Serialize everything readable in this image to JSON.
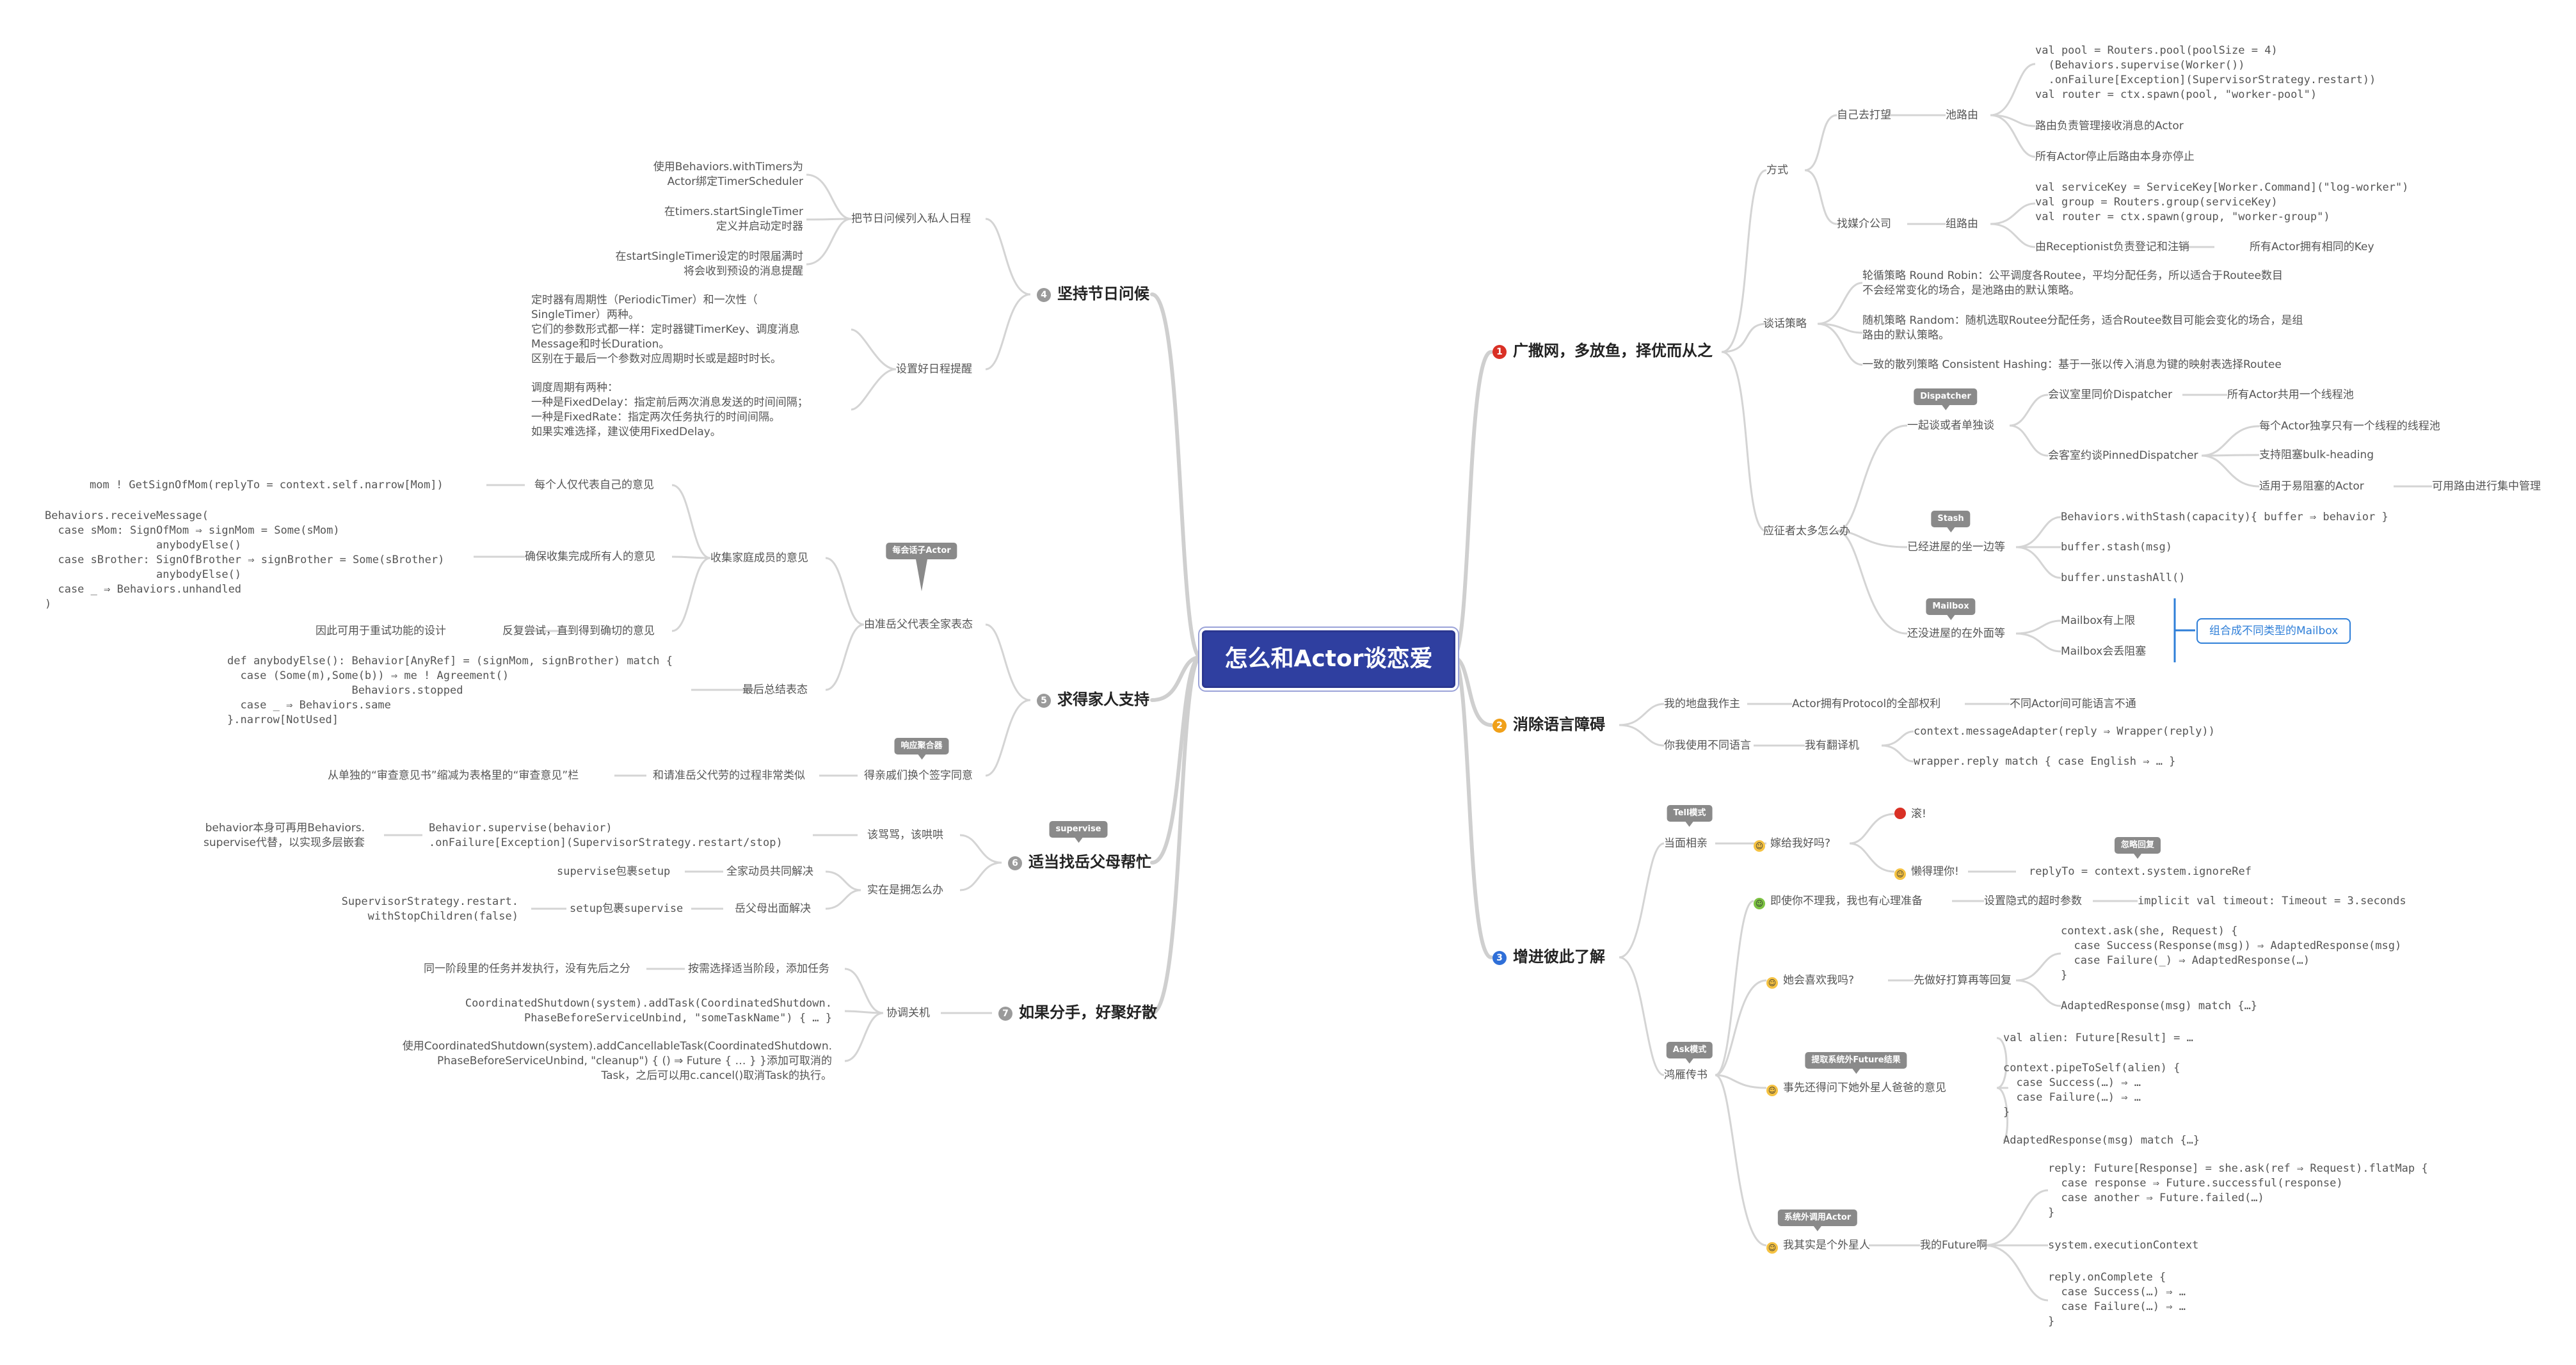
{
  "root": "怎么和Actor谈恋爱",
  "badges": {
    "dispatcher": "Dispatcher",
    "stash": "Stash",
    "mailbox": "Mailbox",
    "tell": "Tell模式",
    "ask": "Ask模式",
    "ignore": "忽略回复",
    "future_result": "提取系统外Future结果",
    "outside": "系统外调用Actor",
    "per_session": "每会话子Actor",
    "aggregate": "响应聚合器",
    "supervise": "supervise"
  },
  "r1": {
    "num": "1",
    "title": "广撒网，多放鱼，择优而从之",
    "fangshi": "方式",
    "ziji": "自己去打望",
    "chilu": "池路由",
    "pool_code": "val pool = Routers.pool(poolSize = 4)\n  (Behaviors.supervise(Worker())\n  .onFailure[Exception](SupervisorStrategy.restart))\nval router = ctx.spawn(pool, \"worker-pool\")",
    "pool_a": "路由负责管理接收消息的Actor",
    "pool_b": "所有Actor停止后路由本身亦停止",
    "jieshao": "找媒介公司",
    "zulu": "组路由",
    "group_code": "val serviceKey = ServiceKey[Worker.Command](\"log-worker\")\nval group = Routers.group(serviceKey)\nval router = ctx.spawn(group, \"worker-group\")",
    "group_a": "由Receptionist负责登记和注销",
    "group_b": "所有Actor拥有相同的Key",
    "tanhua": "谈话策略",
    "rr": "轮循策略 Round Robin：公平调度各Routee，平均分配任务，所以适合于Routee数目\n不会经常变化的场合，是池路由的默认策略。",
    "random": "随机策略 Random：随机选取Routee分配任务，适合Routee数目可能会变化的场合，是组\n路由的默认策略。",
    "hash": "一致的散列策略 Consistent Hashing：基于一张以传入消息为键的映射表选择Routee",
    "yingzheng": "应征者太多怎么办",
    "yiqi": "一起谈或者单独谈",
    "huiyi": "会议室里同价Dispatcher",
    "huiyi_a": "所有Actor共用一个线程池",
    "huike": "会客室约谈PinnedDispatcher",
    "huike_a": "每个Actor独享只有一个线程的线程池",
    "huike_b": "支持阻塞bulk-heading",
    "huike_c": "适用于易阻塞的Actor",
    "huike_c2": "可用路由进行集中管理",
    "yijing": "已经进屋的坐一边等",
    "stash_a": "Behaviors.withStash(capacity){ buffer ⇒ behavior }",
    "stash_b": "buffer.stash(msg)",
    "stash_c": "buffer.unstashAll()",
    "haimei": "还没进屋的在外面等",
    "mail_a": "Mailbox有上限",
    "mail_b": "Mailbox会丢阻塞",
    "mail_note": "组合成不同类型的Mailbox"
  },
  "r2": {
    "num": "2",
    "title": "消除语言障碍",
    "wode": "我的地盘我作主",
    "wode_a": "Actor拥有Protocol的全部权利",
    "wode_b": "不同Actor间可能语言不通",
    "nishi": "你我使用不同语言",
    "fanyi": "我有翻译机",
    "fanyi_a": "context.messageAdapter(reply ⇒ Wrapper(reply))",
    "fanyi_b": "wrapper.reply match { case English ⇒ … }"
  },
  "r3": {
    "num": "3",
    "title": "增进彼此了解",
    "dangmian": "当面相亲",
    "jia": "嫁给我好吗?",
    "gun": "滚!",
    "lanjie": "懒得理你!",
    "lanjie_a": "replyTo = context.system.ignoreRef",
    "yanyan": "鸿雁传书",
    "jishi": "即使你不理我，我也有心理准备",
    "jishi_a": "设置隐式的超时参数",
    "jishi_b": "implicit val timeout: Timeout = 3.seconds",
    "xihuan": "她会喜欢我吗?",
    "xian": "先做好打算再等回复",
    "xian_code": "context.ask(she, Request) {\n  case Success(Response(msg)) ⇒ AdaptedResponse(msg)\n  case Failure(_) ⇒ AdaptedResponse(…)\n}",
    "xian_b": "AdaptedResponse(msg) match {…}",
    "shixian": "事先还得问下她外星人爸爸的意见",
    "alien_a": "val alien: Future[Result] = …",
    "alien_code": "context.pipeToSelf(alien) {\n  case Success(…) ⇒ …\n  case Failure(…) ⇒ …\n}",
    "alien_b": "AdaptedResponse(msg) match {…}",
    "waixing": "我其实是个外星人",
    "future": "我的Future啊",
    "future_code": "reply: Future[Response] = she.ask(ref ⇒ Request).flatMap {\n  case response ⇒ Future.successful(response)\n  case another ⇒ Future.failed(…)\n}",
    "future_b": "system.executionContext",
    "future_code2": "reply.onComplete {\n  case Success(…) ⇒ …\n  case Failure(…) ⇒ …\n}"
  },
  "r4": {
    "num": "4",
    "title": "坚持节日问候",
    "jieri": "把节日问候列入私人日程",
    "a1": "使用Behaviors.withTimers为\nActor绑定TimerScheduler",
    "a2": "在timers.startSingleTimer\n定义并启动定时器",
    "a3": "在startSingleTimer设定的时限届满时\n将会收到预设的消息提醒",
    "shezhi": "设置好日程提醒",
    "b1": "定时器有周期性（PeriodicTimer）和一次性（\nSingleTimer）两种。\n它们的参数形式都一样：定时器键TimerKey、调度消息\nMessage和时长Duration。\n区别在于最后一个参数对应周期时长或是超时时长。",
    "b2": "调度周期有两种：\n一种是FixedDelay：指定前后两次消息发送的时间间隔；\n一种是FixedRate：指定两次任务执行的时间间隔。\n如果实难选择，建议使用FixedDelay。"
  },
  "r5": {
    "num": "5",
    "title": "求得家人支持",
    "youzhun": "由准岳父代表全家表态",
    "shouji": "收集家庭成员的意见",
    "mei": "每个人仅代表自己的意见",
    "mei_code": "mom ! GetSignOfMom(replyTo = context.self.narrow[Mom])",
    "queb": "确保收集完成所有人的意见",
    "queb_code": "Behaviors.receiveMessage(\n  case sMom: SignOfMom ⇒ signMom = Some(sMom)\n                 anybodyElse()\n  case sBrother: SignOfBrother ⇒ signBrother = Some(sBrother)\n                 anybodyElse()\n  case _ ⇒ Behaviors.unhandled\n)",
    "fanfu": "反复尝试，直到得到确切的意见",
    "fanfu_a": "因此可用于重试功能的设计",
    "zuihou": "最后总结表态",
    "zuihou_code": "def anybodyElse(): Behavior[AnyRef] = (signMom, signBrother) match {\n  case (Some(m),Some(b)) ⇒ me ! Agreement()\n                   Behaviors.stopped\n  case _ ⇒ Behaviors.same\n}.narrow[NotUsed]",
    "dedao": "得亲戚们换个签字同意",
    "heqing": "和请准岳父代劳的过程非常类似",
    "heqing_a": "从单独的“审查意见书”缩减为表格里的“审查意见”栏"
  },
  "r6": {
    "num": "6",
    "title": "适当找岳父母帮忙",
    "gai": "该骂骂，该哄哄",
    "gai_code": "Behavior.supervise(behavior)\n.onFailure[Exception](SupervisorStrategy.restart/stop)",
    "gai_a": "behavior本身可再用Behaviors.\nsupervise代替，以实现多层嵌套",
    "shizai": "实在是拥怎么办",
    "quan": "全家动员共同解决",
    "quan_a": "supervise包裹setup",
    "yue": "岳父母出面解决",
    "yue_a": "setup包裹supervise",
    "yue_b": "SupervisorStrategy.restart.\nwithStopChildren(false)"
  },
  "r7": {
    "num": "7",
    "title": "如果分手，好聚好散",
    "xietiao": "协调关机",
    "anzhao": "按需选择适当阶段，添加任务",
    "tong": "同一阶段里的任务并发执行，没有先后之分",
    "c1": "CoordinatedShutdown(system).addTask(CoordinatedShutdown.\nPhaseBeforeServiceUnbind, \"someTaskName\") { … }",
    "c2": "使用CoordinatedShutdown(system).addCancellableTask(CoordinatedShutdown.\nPhaseBeforeServiceUnbind, \"cleanup\") { () ⇒ Future { … } }添加可取消的\nTask，之后可以用c.cancel()取消Task的执行。"
  },
  "colors": {
    "r1": "#d93025",
    "r2": "#f0a019",
    "r3": "#2f6fd8",
    "r4": "#9a9a9a",
    "r5": "#9a9a9a",
    "r6": "#9a9a9a",
    "r7": "#9a9a9a",
    "root": "#2f3fa0"
  }
}
